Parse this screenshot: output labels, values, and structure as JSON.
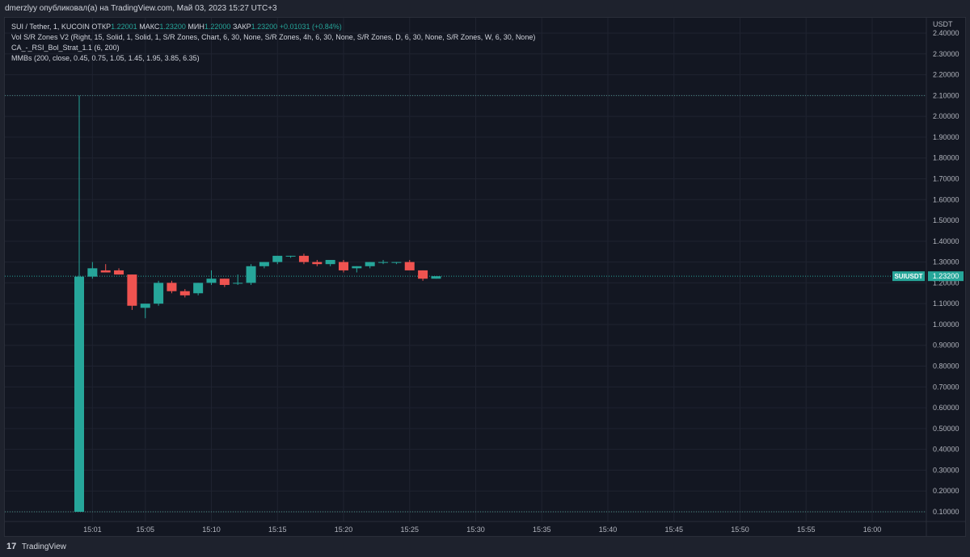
{
  "header": {
    "publisher": "dmerzlyy опубликовал(а) на TradingView.com, Май 03, 2023 15:27 UTC+3"
  },
  "legend": {
    "symbol": "SUI / Tether, 1, KUCOIN",
    "open_label": "ОТКР",
    "open": "1.22001",
    "high_label": "МАКС",
    "high": "1.23200",
    "low_label": "МИН",
    "low": "1.22000",
    "close_label": "ЗАКР",
    "close": "1.23200",
    "change": "+0.01031 (+0.84%)",
    "indicators": [
      "Vol S/R Zones V2 (Right, 15, Solid, 1, Solid, 1, S/R Zones, Chart, 6, 30, None, S/R Zones, 4h, 6, 30, None, S/R Zones, D, 6, 30, None, S/R Zones, W, 6, 30, None)",
      "CA_-_RSI_Bol_Strat_1.1 (6, 200)",
      "MMBs (200, close, 0.45, 0.75, 1.05, 1.45, 1.95, 3.85, 6.35)"
    ]
  },
  "footer": {
    "logo_glyph": "17",
    "brand": "TradingView"
  },
  "colors": {
    "up": "#26a69a",
    "down": "#ef5350",
    "grid": "#1f2330",
    "text": "#b2b5be",
    "bg": "#131722"
  },
  "chart_data": {
    "type": "candlestick",
    "currency": "USDT",
    "current_price_label": "SUIUSDT",
    "current_price": "1.23200",
    "reference_lines": [
      2.1,
      0.1
    ],
    "y_ticks": [
      "0.10000",
      "0.20000",
      "0.30000",
      "0.40000",
      "0.50000",
      "0.60000",
      "0.70000",
      "0.80000",
      "0.90000",
      "1.00000",
      "1.10000",
      "1.20000",
      "1.30000",
      "1.40000",
      "1.50000",
      "1.60000",
      "1.70000",
      "1.80000",
      "1.90000",
      "2.00000",
      "2.10000",
      "2.20000",
      "2.30000",
      "2.40000"
    ],
    "x_ticks": [
      "15:01",
      "15:05",
      "15:10",
      "15:15",
      "15:20",
      "15:25",
      "15:30",
      "15:35",
      "15:40",
      "15:45",
      "15:50",
      "15:55",
      "16:00"
    ],
    "ylim": [
      0.1,
      2.4
    ],
    "x_range_minutes": [
      0,
      61
    ],
    "candles": [
      {
        "t": 0,
        "o": 0.1,
        "h": 2.1,
        "l": 0.1,
        "c": 1.23
      },
      {
        "t": 1,
        "o": 1.23,
        "h": 1.3,
        "l": 1.22,
        "c": 1.27
      },
      {
        "t": 2,
        "o": 1.26,
        "h": 1.29,
        "l": 1.25,
        "c": 1.25
      },
      {
        "t": 3,
        "o": 1.26,
        "h": 1.27,
        "l": 1.24,
        "c": 1.24
      },
      {
        "t": 4,
        "o": 1.24,
        "h": 1.24,
        "l": 1.07,
        "c": 1.09
      },
      {
        "t": 5,
        "o": 1.08,
        "h": 1.1,
        "l": 1.03,
        "c": 1.1
      },
      {
        "t": 6,
        "o": 1.1,
        "h": 1.21,
        "l": 1.09,
        "c": 1.2
      },
      {
        "t": 7,
        "o": 1.2,
        "h": 1.21,
        "l": 1.15,
        "c": 1.16
      },
      {
        "t": 8,
        "o": 1.16,
        "h": 1.17,
        "l": 1.13,
        "c": 1.14
      },
      {
        "t": 9,
        "o": 1.15,
        "h": 1.2,
        "l": 1.14,
        "c": 1.2
      },
      {
        "t": 10,
        "o": 1.2,
        "h": 1.26,
        "l": 1.19,
        "c": 1.22
      },
      {
        "t": 11,
        "o": 1.22,
        "h": 1.22,
        "l": 1.18,
        "c": 1.19
      },
      {
        "t": 12,
        "o": 1.2,
        "h": 1.24,
        "l": 1.19,
        "c": 1.2
      },
      {
        "t": 13,
        "o": 1.2,
        "h": 1.29,
        "l": 1.19,
        "c": 1.28
      },
      {
        "t": 14,
        "o": 1.28,
        "h": 1.3,
        "l": 1.27,
        "c": 1.3
      },
      {
        "t": 15,
        "o": 1.3,
        "h": 1.33,
        "l": 1.29,
        "c": 1.33
      },
      {
        "t": 16,
        "o": 1.33,
        "h": 1.33,
        "l": 1.32,
        "c": 1.33
      },
      {
        "t": 17,
        "o": 1.33,
        "h": 1.34,
        "l": 1.29,
        "c": 1.3
      },
      {
        "t": 18,
        "o": 1.3,
        "h": 1.31,
        "l": 1.28,
        "c": 1.29
      },
      {
        "t": 19,
        "o": 1.29,
        "h": 1.31,
        "l": 1.28,
        "c": 1.31
      },
      {
        "t": 20,
        "o": 1.3,
        "h": 1.31,
        "l": 1.25,
        "c": 1.26
      },
      {
        "t": 21,
        "o": 1.27,
        "h": 1.28,
        "l": 1.25,
        "c": 1.28
      },
      {
        "t": 22,
        "o": 1.28,
        "h": 1.3,
        "l": 1.27,
        "c": 1.3
      },
      {
        "t": 23,
        "o": 1.3,
        "h": 1.31,
        "l": 1.29,
        "c": 1.3
      },
      {
        "t": 24,
        "o": 1.3,
        "h": 1.3,
        "l": 1.29,
        "c": 1.3
      },
      {
        "t": 25,
        "o": 1.3,
        "h": 1.31,
        "l": 1.27,
        "c": 1.26
      },
      {
        "t": 26,
        "o": 1.26,
        "h": 1.26,
        "l": 1.21,
        "c": 1.22
      },
      {
        "t": 27,
        "o": 1.22,
        "h": 1.23,
        "l": 1.22,
        "c": 1.232
      }
    ]
  }
}
